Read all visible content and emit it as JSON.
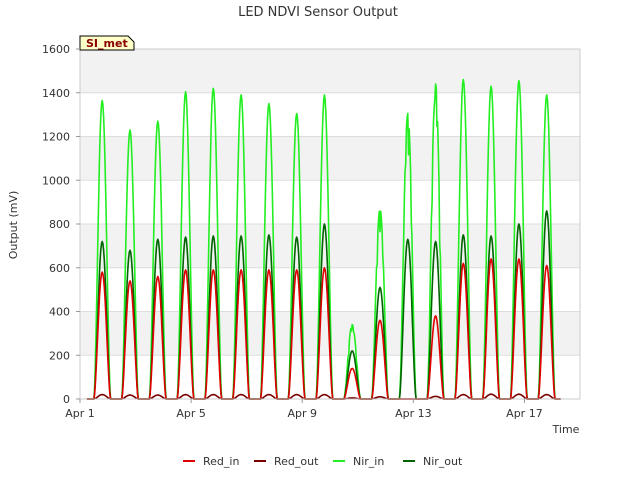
{
  "chart_data": {
    "type": "line",
    "title": "LED NDVI Sensor Output",
    "badge": "SI_met",
    "xlabel": "Time",
    "ylabel": "Output (mV)",
    "ylim": [
      0,
      1600
    ],
    "yticks": [
      0,
      200,
      400,
      600,
      800,
      1000,
      1200,
      1400,
      1600
    ],
    "xlim_days": [
      1,
      19
    ],
    "xticks": [
      {
        "label": "Apr 1",
        "day": 1
      },
      {
        "label": "Apr 5",
        "day": 5
      },
      {
        "label": "Apr 9",
        "day": 9
      },
      {
        "label": "Apr 13",
        "day": 13
      },
      {
        "label": "Apr 17",
        "day": 17
      }
    ],
    "grid": true,
    "legend_position": "bottom",
    "series": [
      {
        "name": "Red_in",
        "color": "#e00000",
        "daily_peaks": [
          580,
          540,
          560,
          590,
          590,
          590,
          590,
          590,
          600,
          140,
          360,
          0,
          380,
          620,
          640,
          640,
          610
        ]
      },
      {
        "name": "Red_out",
        "color": "#7a0000",
        "daily_peaks": [
          20,
          18,
          18,
          20,
          20,
          20,
          20,
          20,
          20,
          5,
          10,
          0,
          12,
          20,
          22,
          22,
          20
        ]
      },
      {
        "name": "Nir_in",
        "color": "#22ee22",
        "daily_peaks": [
          1365,
          1230,
          1270,
          1405,
          1420,
          1390,
          1350,
          1305,
          1390,
          340,
          870,
          1305,
          1440,
          1460,
          1430,
          1455,
          1390
        ]
      },
      {
        "name": "Nir_out",
        "color": "#006400",
        "daily_peaks": [
          720,
          680,
          730,
          740,
          745,
          745,
          750,
          740,
          800,
          220,
          510,
          730,
          720,
          750,
          745,
          800,
          860
        ]
      }
    ]
  }
}
